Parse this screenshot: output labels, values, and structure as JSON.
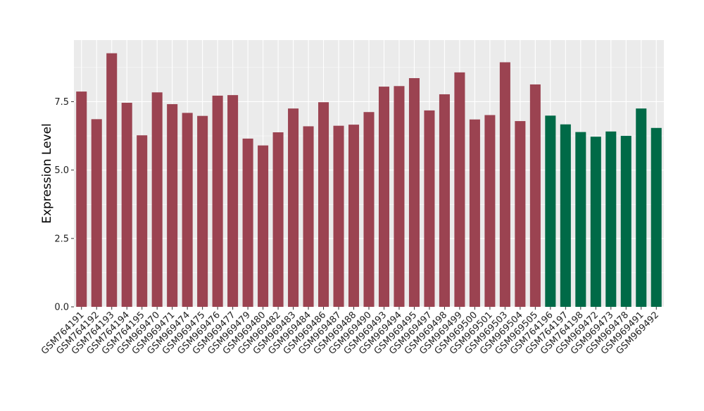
{
  "chart_data": {
    "type": "bar",
    "title": "",
    "xlabel": "",
    "ylabel": "Expression Level",
    "ylim": [
      0,
      9.75
    ],
    "yticks": [
      0.0,
      2.5,
      5.0,
      7.5
    ],
    "ytick_labels": [
      "0.0",
      "2.5",
      "5.0",
      "7.5"
    ],
    "grid": true,
    "legend": "none",
    "colors": {
      "group_a": "#9b4351",
      "group_b": "#006a47",
      "panel_bg": "#ebebeb",
      "grid": "#ffffff",
      "axis_text": "#222222"
    },
    "categories": [
      "GSM764191",
      "GSM764192",
      "GSM764193",
      "GSM764194",
      "GSM764195",
      "GSM969470",
      "GSM969471",
      "GSM969474",
      "GSM969475",
      "GSM969476",
      "GSM969477",
      "GSM969479",
      "GSM969480",
      "GSM969482",
      "GSM969483",
      "GSM969484",
      "GSM969486",
      "GSM969487",
      "GSM969488",
      "GSM969490",
      "GSM969493",
      "GSM969494",
      "GSM969495",
      "GSM969497",
      "GSM969498",
      "GSM969499",
      "GSM969500",
      "GSM969501",
      "GSM969503",
      "GSM969504",
      "GSM969505",
      "GSM764196",
      "GSM764197",
      "GSM764198",
      "GSM969472",
      "GSM969473",
      "GSM969478",
      "GSM969491",
      "GSM969492"
    ],
    "values": [
      7.87,
      6.86,
      9.27,
      7.46,
      6.27,
      7.84,
      7.41,
      7.09,
      6.98,
      7.72,
      7.74,
      6.15,
      5.9,
      6.38,
      7.25,
      6.6,
      7.48,
      6.62,
      6.66,
      7.12,
      8.05,
      8.07,
      8.36,
      7.18,
      7.77,
      8.57,
      6.85,
      7.01,
      8.94,
      6.79,
      8.13,
      6.99,
      6.67,
      6.39,
      6.22,
      6.41,
      6.25,
      7.25,
      6.54
    ],
    "groups": [
      "a",
      "a",
      "a",
      "a",
      "a",
      "a",
      "a",
      "a",
      "a",
      "a",
      "a",
      "a",
      "a",
      "a",
      "a",
      "a",
      "a",
      "a",
      "a",
      "a",
      "a",
      "a",
      "a",
      "a",
      "a",
      "a",
      "a",
      "a",
      "a",
      "a",
      "a",
      "b",
      "b",
      "b",
      "b",
      "b",
      "b",
      "b",
      "b"
    ]
  }
}
